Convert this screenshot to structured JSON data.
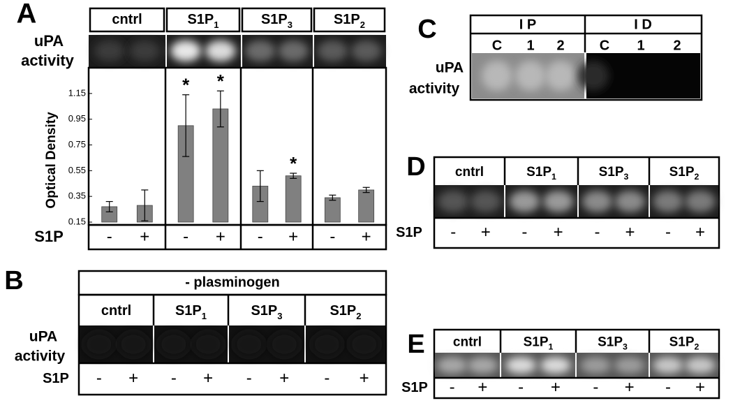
{
  "chart_data": {
    "type": "bar",
    "panel_label": "A",
    "ylabel": "Optical Density",
    "row_label": [
      "uPA",
      "activity"
    ],
    "sign_label": "S1P",
    "groups": [
      {
        "name": "cntrl"
      },
      {
        "name": "S1P",
        "sub": "1"
      },
      {
        "name": "S1P",
        "sub": "3"
      },
      {
        "name": "S1P",
        "sub": "2"
      }
    ],
    "categories": [
      "-",
      "+",
      "-",
      "+",
      "-",
      "+",
      "-",
      "+"
    ],
    "values": [
      0.27,
      0.28,
      0.9,
      1.03,
      0.43,
      0.51,
      0.34,
      0.4
    ],
    "errors": [
      0.04,
      0.12,
      0.24,
      0.14,
      0.12,
      0.02,
      0.02,
      0.02
    ],
    "annotations": [
      null,
      null,
      "*",
      "*",
      null,
      "*",
      null,
      null
    ],
    "color": "#808080",
    "ylim": [
      0.15,
      1.35
    ],
    "yticks": [
      0.15,
      0.35,
      0.55,
      0.75,
      0.95,
      1.15
    ]
  },
  "panels": {
    "B": {
      "label": "B",
      "banner": "- plasminogen",
      "row_label": [
        "uPA",
        "activity"
      ],
      "sign_label": "S1P",
      "groups": [
        {
          "name": "cntrl"
        },
        {
          "name": "S1P",
          "sub": "1"
        },
        {
          "name": "S1P",
          "sub": "3"
        },
        {
          "name": "S1P",
          "sub": "2"
        }
      ],
      "signs": [
        "-",
        "+",
        "-",
        "+",
        "-",
        "+",
        "-",
        "+"
      ]
    },
    "C": {
      "label": "C",
      "row_label": [
        "uPA",
        "activity"
      ],
      "headers": [
        "I P",
        "I D"
      ],
      "lanes": [
        "C",
        "1",
        "2",
        "C",
        "1",
        "2"
      ]
    },
    "D": {
      "label": "D",
      "sign_label": "S1P",
      "groups": [
        {
          "name": "cntrl"
        },
        {
          "name": "S1P",
          "sub": "1"
        },
        {
          "name": "S1P",
          "sub": "3"
        },
        {
          "name": "S1P",
          "sub": "2"
        }
      ],
      "signs": [
        "-",
        "+",
        "-",
        "+",
        "-",
        "+",
        "-",
        "+"
      ]
    },
    "E": {
      "label": "E",
      "sign_label": "S1P",
      "groups": [
        {
          "name": "cntrl"
        },
        {
          "name": "S1P",
          "sub": "1"
        },
        {
          "name": "S1P",
          "sub": "3"
        },
        {
          "name": "S1P",
          "sub": "2"
        }
      ],
      "signs": [
        "-",
        "+",
        "-",
        "+",
        "-",
        "+",
        "-",
        "+"
      ]
    }
  }
}
